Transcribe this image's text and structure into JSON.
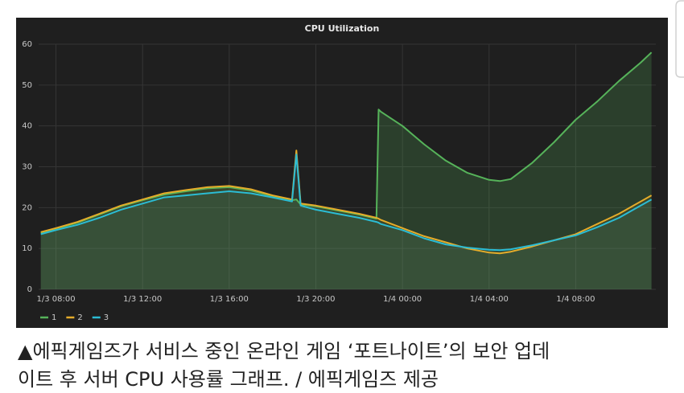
{
  "chart_data": {
    "type": "line",
    "title": "CPU Utilization",
    "x": [
      7.3,
      8,
      9,
      10,
      11,
      12,
      13,
      14,
      15,
      16,
      17,
      18,
      18.9,
      19.1,
      19.3,
      20,
      21,
      22,
      22.8,
      22.9,
      23,
      24,
      25,
      26,
      27,
      28,
      28.5,
      29,
      30,
      31,
      32,
      33,
      34,
      35,
      35.5
    ],
    "series": [
      {
        "name": "1",
        "color": "#56b35a",
        "values": [
          13.8,
          14.8,
          16.3,
          18.3,
          20.3,
          21.8,
          23.2,
          24,
          24.7,
          25,
          24.2,
          22.8,
          21.8,
          22,
          20.8,
          20.3,
          19.3,
          18.3,
          17.3,
          44,
          43.5,
          40,
          35.5,
          31.5,
          28.5,
          26.8,
          26.5,
          27,
          31,
          36,
          41.5,
          46,
          51,
          55.5,
          58
        ]
      },
      {
        "name": "2",
        "color": "#e5ac2a",
        "values": [
          14,
          15,
          16.5,
          18.5,
          20.5,
          22,
          23.5,
          24.3,
          25,
          25.3,
          24.5,
          23,
          22,
          34,
          21,
          20.5,
          19.5,
          18.5,
          17.5,
          17.3,
          17,
          15,
          13,
          11.5,
          10,
          9,
          8.8,
          9.2,
          10.5,
          12,
          13.5,
          16,
          18.5,
          21.5,
          23
        ]
      },
      {
        "name": "3",
        "color": "#2bbcd4",
        "values": [
          13.5,
          14.5,
          15.8,
          17.5,
          19.5,
          21,
          22.5,
          23,
          23.5,
          24,
          23.5,
          22.5,
          21.5,
          33,
          20.5,
          19.5,
          18.5,
          17.5,
          16.5,
          16.3,
          16,
          14.5,
          12.5,
          11,
          10.2,
          9.7,
          9.6,
          9.8,
          10.8,
          12,
          13.2,
          15.2,
          17.5,
          20.5,
          22
        ]
      }
    ],
    "xlim": [
      7.2,
      35.7
    ],
    "xticks": [
      {
        "value": 8,
        "label": "1/3 08:00"
      },
      {
        "value": 12,
        "label": "1/3 12:00"
      },
      {
        "value": 16,
        "label": "1/3 16:00"
      },
      {
        "value": 20,
        "label": "1/3 20:00"
      },
      {
        "value": 24,
        "label": "1/4 00:00"
      },
      {
        "value": 28,
        "label": "1/4 04:00"
      },
      {
        "value": 32,
        "label": "1/4 08:00"
      }
    ],
    "ylim": [
      0,
      60
    ],
    "yticks": [
      0,
      10,
      20,
      30,
      40,
      50,
      60
    ],
    "grid": true,
    "legend": "bottom-left"
  },
  "caption": [
    "▲에픽게임즈가 서비스 중인 온라인 게임 ‘포트나이트’의 보안 업데",
    "이트 후 서버 CPU 사용률 그래프. / 에픽게임즈 제공"
  ]
}
